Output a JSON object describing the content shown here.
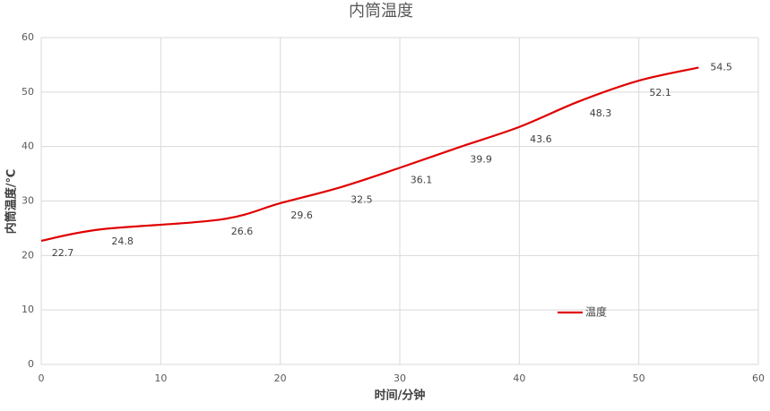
{
  "chart_data": {
    "type": "line",
    "title": "内筒温度",
    "x_label": "时间/分钟",
    "y_label": "内筒温度/℃",
    "x": [
      0,
      5,
      15,
      20,
      25,
      30,
      35,
      40,
      45,
      50,
      55
    ],
    "series": [
      {
        "name": "温度",
        "color": "#e00000",
        "values": [
          22.7,
          24.8,
          26.6,
          29.6,
          32.5,
          36.1,
          39.9,
          43.6,
          48.3,
          52.1,
          54.5
        ]
      }
    ],
    "xlim": [
      0,
      60
    ],
    "xticks": [
      0,
      10,
      20,
      30,
      40,
      50,
      60
    ],
    "ylim": [
      0,
      60
    ],
    "yticks": [
      0,
      10,
      20,
      30,
      40,
      50,
      60
    ],
    "grid": true
  }
}
